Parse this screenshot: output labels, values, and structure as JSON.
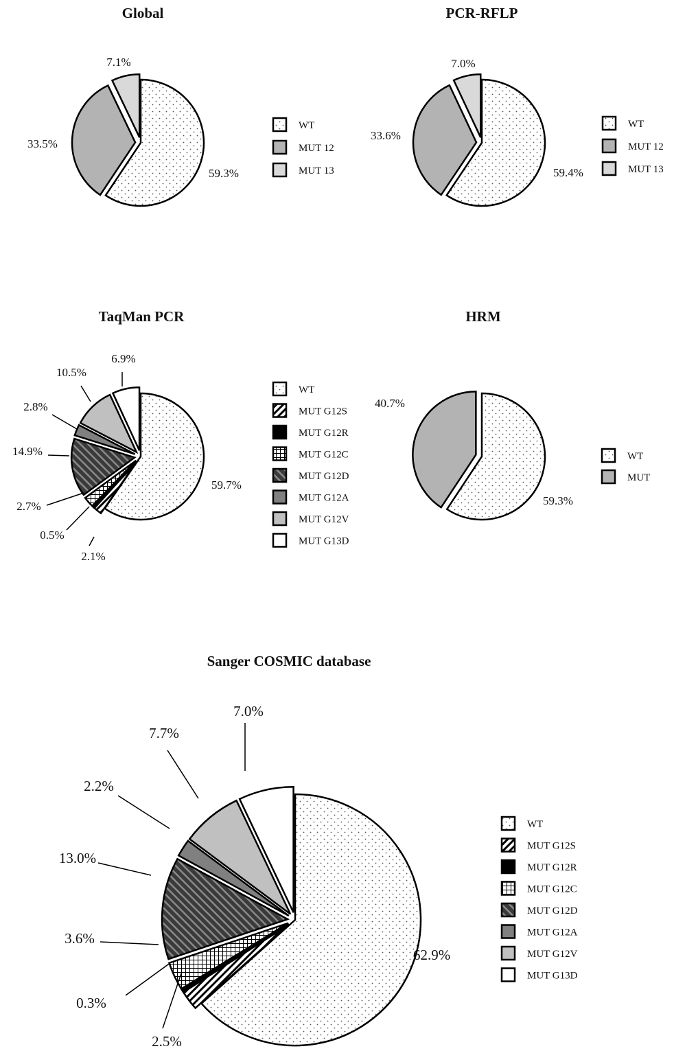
{
  "chart_data": [
    {
      "type": "pie",
      "title": "Global",
      "categories": [
        "WT",
        "MUT 12",
        "MUT 13"
      ],
      "values": [
        59.3,
        33.5,
        7.1
      ],
      "labels": [
        "59.3%",
        "33.5%",
        "7.1%"
      ],
      "legend": [
        "WT",
        "MUT 12",
        "MUT 13"
      ]
    },
    {
      "type": "pie",
      "title": "PCR-RFLP",
      "categories": [
        "WT",
        "MUT 12",
        "MUT 13"
      ],
      "values": [
        59.4,
        33.6,
        7.0
      ],
      "labels": [
        "59.4%",
        "33.6%",
        "7.0%"
      ],
      "legend": [
        "WT",
        "MUT 12",
        "MUT 13"
      ]
    },
    {
      "type": "pie",
      "title": "TaqMan PCR",
      "categories": [
        "WT",
        "MUT G12S",
        "MUT G12R",
        "MUT G12C",
        "MUT G12D",
        "MUT G12A",
        "MUT G12V",
        "MUT G13D"
      ],
      "values": [
        59.7,
        2.1,
        0.5,
        2.7,
        14.9,
        2.8,
        10.5,
        6.9
      ],
      "labels": [
        "59.7%",
        "2.1%",
        "0.5%",
        "2.7%",
        "14.9%",
        "2.8%",
        "10.5%",
        "6.9%"
      ],
      "legend": [
        "WT",
        "MUT G12S",
        "MUT G12R",
        "MUT G12C",
        "MUT G12D",
        "MUT G12A",
        "MUT G12V",
        "MUT G13D"
      ]
    },
    {
      "type": "pie",
      "title": "HRM",
      "categories": [
        "WT",
        "MUT"
      ],
      "values": [
        59.3,
        40.7
      ],
      "labels": [
        "59.3%",
        "40.7%"
      ],
      "legend": [
        "WT",
        "MUT"
      ]
    },
    {
      "type": "pie",
      "title": "Sanger COSMIC database",
      "categories": [
        "WT",
        "MUT G12S",
        "MUT G12R",
        "MUT G12C",
        "MUT G12D",
        "MUT G12A",
        "MUT G12V",
        "MUT G13D"
      ],
      "values": [
        62.9,
        2.5,
        0.3,
        3.6,
        13.0,
        2.2,
        7.7,
        7.0
      ],
      "labels": [
        "62.9%",
        "2.5%",
        "0.3%",
        "3.6%",
        "13.0%",
        "2.2%",
        "7.7%",
        "7.0%"
      ],
      "legend": [
        "WT",
        "MUT G12S",
        "MUT G12R",
        "MUT G12C",
        "MUT G12D",
        "MUT G12A",
        "MUT G12V",
        "MUT G13D"
      ]
    }
  ],
  "fills": {
    "WT": "dots",
    "MUT 12": "#b3b3b3",
    "MUT 13": "#d9d9d9",
    "MUT": "#b3b3b3",
    "MUT G12S": "diagonal-hatch",
    "MUT G12R": "#000000",
    "MUT G12C": "crosshatch",
    "MUT G12D": "dark-diagonal-stripes",
    "MUT G12A": "#808080",
    "MUT G12V": "#c0c0c0",
    "MUT G13D": "#ffffff"
  }
}
